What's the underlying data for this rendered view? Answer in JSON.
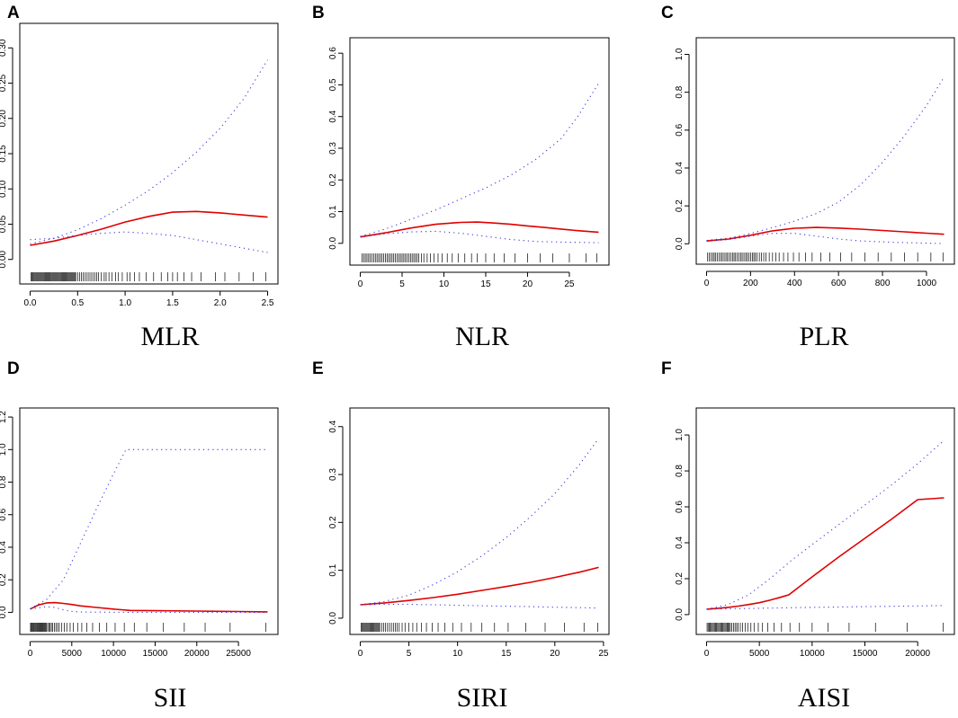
{
  "figure": {
    "background": "#ffffff"
  },
  "colors": {
    "fit": "#e00000",
    "ci": "#3838e0",
    "rug": "#000000"
  },
  "chart_data": [
    {
      "type": "line",
      "panel": "A",
      "title": "MLR",
      "xlabel": "MLR",
      "ylabel": "",
      "xlim": [
        0,
        2.5
      ],
      "ylim": [
        -0.02,
        0.32
      ],
      "xticks": [
        0.0,
        0.5,
        1.0,
        1.5,
        2.0,
        2.5
      ],
      "xtick_labels": [
        "0.0",
        "0.5",
        "1.0",
        "1.5",
        "2.0",
        "2.5"
      ],
      "yticks": [
        0.0,
        0.05,
        0.1,
        0.15,
        0.2,
        0.25,
        0.3
      ],
      "ytick_labels": [
        "0.00",
        "0.05",
        "0.10",
        "0.15",
        "0.20",
        "0.25",
        "0.30"
      ],
      "series": [
        {
          "name": "fit",
          "style": "solid",
          "color": "#e00000",
          "x": [
            0.0,
            0.25,
            0.5,
            0.75,
            1.0,
            1.25,
            1.5,
            1.75,
            2.0,
            2.25,
            2.5
          ],
          "y": [
            0.02,
            0.026,
            0.034,
            0.043,
            0.053,
            0.061,
            0.067,
            0.068,
            0.066,
            0.063,
            0.06
          ]
        },
        {
          "name": "upper 95% CI",
          "style": "dotted",
          "color": "#3838e0",
          "x": [
            0.0,
            0.25,
            0.5,
            0.75,
            1.0,
            1.25,
            1.5,
            1.75,
            2.0,
            2.25,
            2.5
          ],
          "y": [
            0.022,
            0.03,
            0.042,
            0.058,
            0.077,
            0.098,
            0.123,
            0.152,
            0.186,
            0.228,
            0.283
          ]
        },
        {
          "name": "lower 95% CI",
          "style": "dotted",
          "color": "#3838e0",
          "x": [
            0.0,
            0.25,
            0.5,
            0.75,
            1.0,
            1.25,
            1.5,
            1.75,
            2.0,
            2.25,
            2.5
          ],
          "y": [
            0.028,
            0.03,
            0.034,
            0.037,
            0.039,
            0.037,
            0.034,
            0.028,
            0.022,
            0.016,
            0.01
          ]
        }
      ],
      "rug": [
        0.01,
        0.02,
        0.03,
        0.04,
        0.05,
        0.06,
        0.07,
        0.08,
        0.09,
        0.1,
        0.11,
        0.12,
        0.13,
        0.14,
        0.15,
        0.16,
        0.17,
        0.18,
        0.19,
        0.2,
        0.21,
        0.22,
        0.23,
        0.24,
        0.25,
        0.26,
        0.27,
        0.28,
        0.29,
        0.3,
        0.31,
        0.32,
        0.33,
        0.34,
        0.35,
        0.36,
        0.37,
        0.38,
        0.39,
        0.4,
        0.41,
        0.42,
        0.43,
        0.44,
        0.45,
        0.46,
        0.47,
        0.48,
        0.5,
        0.52,
        0.54,
        0.56,
        0.58,
        0.6,
        0.62,
        0.64,
        0.66,
        0.68,
        0.7,
        0.72,
        0.75,
        0.78,
        0.8,
        0.83,
        0.86,
        0.9,
        0.93,
        0.97,
        1.02,
        1.05,
        1.1,
        1.15,
        1.22,
        1.3,
        1.38,
        1.45,
        1.5,
        1.55,
        1.62,
        1.7,
        1.8,
        1.95,
        2.05,
        2.2,
        2.35,
        2.48
      ]
    },
    {
      "type": "line",
      "panel": "B",
      "title": "NLR",
      "xlabel": "NLR",
      "ylabel": "",
      "xlim": [
        0,
        28.5
      ],
      "ylim": [
        -0.04,
        0.62
      ],
      "xticks": [
        0,
        5,
        10,
        15,
        20,
        25
      ],
      "xtick_labels": [
        "0",
        "5",
        "10",
        "15",
        "20",
        "25"
      ],
      "yticks": [
        0.0,
        0.1,
        0.2,
        0.3,
        0.4,
        0.5,
        0.6
      ],
      "ytick_labels": [
        "0.0",
        "0.1",
        "0.2",
        "0.3",
        "0.4",
        "0.5",
        "0.6"
      ],
      "series": [
        {
          "name": "fit",
          "style": "solid",
          "color": "#e00000",
          "x": [
            0,
            3,
            6,
            9,
            12,
            14,
            16,
            18,
            20,
            22,
            24,
            26,
            28.5
          ],
          "y": [
            0.02,
            0.033,
            0.048,
            0.06,
            0.066,
            0.067,
            0.064,
            0.06,
            0.055,
            0.05,
            0.045,
            0.04,
            0.035
          ]
        },
        {
          "name": "upper 95% CI",
          "style": "dotted",
          "color": "#3838e0",
          "x": [
            0,
            3,
            6,
            9,
            12,
            15,
            18,
            21,
            24,
            26,
            28.5
          ],
          "y": [
            0.022,
            0.045,
            0.075,
            0.105,
            0.14,
            0.175,
            0.215,
            0.265,
            0.33,
            0.4,
            0.505
          ]
        },
        {
          "name": "lower 95% CI",
          "style": "dotted",
          "color": "#3838e0",
          "x": [
            0,
            3,
            6,
            9,
            12,
            15,
            18,
            21,
            24,
            26,
            28.5
          ],
          "y": [
            0.02,
            0.03,
            0.036,
            0.038,
            0.032,
            0.022,
            0.012,
            0.006,
            0.004,
            0.003,
            0.002
          ]
        }
      ],
      "rug": [
        0.2,
        0.4,
        0.6,
        0.8,
        1,
        1.2,
        1.4,
        1.6,
        1.8,
        2,
        2.2,
        2.4,
        2.6,
        2.8,
        3,
        3.2,
        3.4,
        3.6,
        3.8,
        4,
        4.2,
        4.4,
        4.6,
        4.8,
        5,
        5.2,
        5.4,
        5.6,
        5.8,
        6,
        6.2,
        6.4,
        6.6,
        6.8,
        7,
        7.3,
        7.6,
        8,
        8.4,
        8.8,
        9.3,
        9.8,
        10.4,
        11,
        11.7,
        12.5,
        13.3,
        14,
        15,
        16,
        17.2,
        18.5,
        20,
        21.5,
        23,
        25,
        27,
        28.3
      ]
    },
    {
      "type": "line",
      "panel": "C",
      "title": "PLR",
      "xlabel": "PLR",
      "ylabel": "",
      "xlim": [
        0,
        1080
      ],
      "ylim": [
        -0.06,
        1.04
      ],
      "xticks": [
        0,
        200,
        400,
        600,
        800,
        1000
      ],
      "xtick_labels": [
        "0",
        "200",
        "400",
        "600",
        "800",
        "1000"
      ],
      "yticks": [
        0.0,
        0.2,
        0.4,
        0.6,
        0.8,
        1.0
      ],
      "ytick_labels": [
        "0.0",
        "0.2",
        "0.4",
        "0.6",
        "0.8",
        "1.0"
      ],
      "series": [
        {
          "name": "fit",
          "style": "solid",
          "color": "#e00000",
          "x": [
            0,
            100,
            200,
            300,
            400,
            500,
            600,
            700,
            800,
            900,
            1000,
            1080
          ],
          "y": [
            0.015,
            0.025,
            0.045,
            0.068,
            0.082,
            0.086,
            0.083,
            0.077,
            0.07,
            0.063,
            0.056,
            0.05
          ]
        },
        {
          "name": "upper 95% CI",
          "style": "dotted",
          "color": "#3838e0",
          "x": [
            0,
            100,
            200,
            300,
            400,
            500,
            600,
            700,
            800,
            900,
            1000,
            1080
          ],
          "y": [
            0.018,
            0.03,
            0.055,
            0.085,
            0.12,
            0.16,
            0.22,
            0.31,
            0.43,
            0.57,
            0.73,
            0.88
          ]
        },
        {
          "name": "lower 95% CI",
          "style": "dotted",
          "color": "#3838e0",
          "x": [
            0,
            100,
            200,
            300,
            400,
            500,
            600,
            700,
            800,
            900,
            1000,
            1080
          ],
          "y": [
            0.012,
            0.022,
            0.04,
            0.055,
            0.055,
            0.04,
            0.025,
            0.015,
            0.01,
            0.006,
            0.003,
            0.001
          ]
        }
      ],
      "rug": [
        5,
        12,
        20,
        28,
        35,
        42,
        50,
        58,
        65,
        72,
        80,
        88,
        95,
        102,
        110,
        118,
        125,
        132,
        140,
        148,
        155,
        162,
        170,
        178,
        185,
        192,
        200,
        208,
        215,
        222,
        230,
        240,
        250,
        260,
        270,
        285,
        300,
        315,
        330,
        350,
        370,
        395,
        420,
        450,
        480,
        520,
        560,
        610,
        660,
        720,
        780,
        840,
        900,
        960,
        1020,
        1075
      ]
    },
    {
      "type": "line",
      "panel": "D",
      "title": "SII",
      "xlabel": "SII",
      "ylabel": "",
      "xlim": [
        0,
        28500
      ],
      "ylim": [
        -0.08,
        1.2
      ],
      "xticks": [
        0,
        5000,
        10000,
        15000,
        20000,
        25000
      ],
      "xtick_labels": [
        "0",
        "5000",
        "10000",
        "15000",
        "20000",
        "25000"
      ],
      "yticks": [
        0.0,
        0.2,
        0.4,
        0.6,
        0.8,
        1.0,
        1.2
      ],
      "ytick_labels": [
        "0.0",
        "0.2",
        "0.4",
        "0.6",
        "0.8",
        "1.0",
        "1.2"
      ],
      "series": [
        {
          "name": "fit",
          "style": "solid",
          "color": "#e00000",
          "x": [
            0,
            1000,
            2000,
            3000,
            4000,
            5000,
            6000,
            8000,
            10000,
            12000,
            15000,
            20000,
            25000,
            28500
          ],
          "y": [
            0.02,
            0.045,
            0.058,
            0.06,
            0.055,
            0.048,
            0.04,
            0.03,
            0.02,
            0.012,
            0.01,
            0.008,
            0.005,
            0.003
          ]
        },
        {
          "name": "upper 95% CI",
          "style": "dotted",
          "color": "#3838e0",
          "x": [
            0,
            2000,
            4000,
            6000,
            8000,
            10000,
            11500,
            15000,
            20000,
            25000,
            28500
          ],
          "y": [
            0.022,
            0.08,
            0.2,
            0.42,
            0.64,
            0.85,
            1.0,
            1.0,
            1.0,
            1.0,
            1.0
          ]
        },
        {
          "name": "lower 95% CI",
          "style": "dotted",
          "color": "#3838e0",
          "x": [
            0,
            2000,
            3000,
            4000,
            5000,
            6000,
            8000,
            11500,
            15000,
            20000,
            25000,
            28500
          ],
          "y": [
            0.02,
            0.035,
            0.03,
            0.015,
            0.006,
            0.002,
            0.001,
            0.0,
            0.0,
            0.0,
            0.0,
            0.0
          ]
        }
      ],
      "rug": [
        50,
        150,
        250,
        350,
        450,
        550,
        650,
        750,
        850,
        950,
        1050,
        1150,
        1250,
        1350,
        1450,
        1550,
        1650,
        1750,
        1850,
        1950,
        2100,
        2250,
        2400,
        2550,
        2700,
        2900,
        3100,
        3300,
        3500,
        3800,
        4100,
        4400,
        4800,
        5200,
        5700,
        6200,
        6800,
        7500,
        8300,
        9200,
        10200,
        11300,
        12500,
        14000,
        16000,
        18500,
        21000,
        24000,
        28300
      ]
    },
    {
      "type": "line",
      "panel": "E",
      "title": "SIRI",
      "xlabel": "SIRI",
      "ylabel": "",
      "xlim": [
        0,
        24.5
      ],
      "ylim": [
        -0.015,
        0.42
      ],
      "xticks": [
        0,
        5,
        10,
        15,
        20,
        25
      ],
      "xtick_labels": [
        "0",
        "5",
        "10",
        "15",
        "20",
        "25"
      ],
      "yticks": [
        0.0,
        0.1,
        0.2,
        0.3,
        0.4
      ],
      "ytick_labels": [
        "0.0",
        "0.1",
        "0.2",
        "0.3",
        "0.4"
      ],
      "series": [
        {
          "name": "fit",
          "style": "solid",
          "color": "#e00000",
          "x": [
            0,
            2.5,
            5,
            7.5,
            10,
            12.5,
            15,
            17.5,
            20,
            22.5,
            24.5
          ],
          "y": [
            0.028,
            0.032,
            0.037,
            0.043,
            0.05,
            0.058,
            0.066,
            0.075,
            0.085,
            0.096,
            0.106
          ]
        },
        {
          "name": "upper 95% CI",
          "style": "dotted",
          "color": "#3838e0",
          "x": [
            0,
            2.5,
            5,
            7.5,
            10,
            12.5,
            15,
            17.5,
            20,
            22.5,
            24.5
          ],
          "y": [
            0.028,
            0.035,
            0.048,
            0.07,
            0.097,
            0.13,
            0.168,
            0.212,
            0.26,
            0.32,
            0.375
          ]
        },
        {
          "name": "lower 95% CI",
          "style": "dotted",
          "color": "#3838e0",
          "x": [
            0,
            2.5,
            5,
            7.5,
            10,
            12.5,
            15,
            17.5,
            20,
            22.5,
            24.5
          ],
          "y": [
            0.028,
            0.029,
            0.029,
            0.028,
            0.027,
            0.026,
            0.025,
            0.024,
            0.023,
            0.022,
            0.021
          ]
        }
      ],
      "rug": [
        0.1,
        0.2,
        0.3,
        0.4,
        0.5,
        0.6,
        0.7,
        0.8,
        0.9,
        1,
        1.1,
        1.2,
        1.3,
        1.4,
        1.5,
        1.6,
        1.7,
        1.8,
        1.9,
        2,
        2.2,
        2.4,
        2.6,
        2.8,
        3,
        3.2,
        3.4,
        3.6,
        3.8,
        4,
        4.3,
        4.6,
        5,
        5.4,
        5.8,
        6.3,
        6.8,
        7.4,
        8,
        8.7,
        9.5,
        10.4,
        11.4,
        12.5,
        13.8,
        15.2,
        17,
        19,
        21,
        23,
        24.4
      ]
    },
    {
      "type": "line",
      "panel": "F",
      "title": "AISI",
      "xlabel": "AISI",
      "ylabel": "",
      "xlim": [
        0,
        22500
      ],
      "ylim": [
        -0.06,
        1.1
      ],
      "xticks": [
        0,
        5000,
        10000,
        15000,
        20000
      ],
      "xtick_labels": [
        "0",
        "5000",
        "10000",
        "15000",
        "20000"
      ],
      "yticks": [
        0.0,
        0.2,
        0.4,
        0.6,
        0.8,
        1.0
      ],
      "ytick_labels": [
        "0.0",
        "0.2",
        "0.4",
        "0.6",
        "0.8",
        "1.0"
      ],
      "series": [
        {
          "name": "fit",
          "style": "solid",
          "color": "#e00000",
          "x": [
            0,
            1000,
            2000,
            3000,
            4000,
            5000,
            6000,
            7000,
            7800,
            10000,
            12500,
            15000,
            17500,
            20000,
            22500
          ],
          "y": [
            0.03,
            0.034,
            0.04,
            0.047,
            0.056,
            0.066,
            0.08,
            0.096,
            0.11,
            0.21,
            0.32,
            0.425,
            0.53,
            0.64,
            0.65
          ]
        },
        {
          "name": "upper 95% CI",
          "style": "dotted",
          "color": "#3838e0",
          "x": [
            0,
            2000,
            4000,
            6000,
            8000,
            10000,
            12500,
            15000,
            17500,
            20000,
            22500
          ],
          "y": [
            0.03,
            0.055,
            0.11,
            0.2,
            0.3,
            0.39,
            0.5,
            0.61,
            0.72,
            0.84,
            0.97
          ]
        },
        {
          "name": "lower 95% CI",
          "style": "dotted",
          "color": "#3838e0",
          "x": [
            0,
            2000,
            4000,
            6000,
            8000,
            10000,
            12500,
            15000,
            17500,
            20000,
            22500
          ],
          "y": [
            0.03,
            0.032,
            0.034,
            0.036,
            0.038,
            0.04,
            0.042,
            0.044,
            0.046,
            0.048,
            0.05
          ]
        }
      ],
      "rug": [
        50,
        150,
        250,
        350,
        450,
        550,
        650,
        750,
        850,
        950,
        1050,
        1150,
        1250,
        1350,
        1450,
        1550,
        1650,
        1750,
        1850,
        1950,
        2050,
        2150,
        2250,
        2400,
        2550,
        2700,
        2850,
        3000,
        3200,
        3400,
        3650,
        3900,
        4200,
        4500,
        4900,
        5300,
        5800,
        6400,
        7100,
        7900,
        8800,
        10000,
        11500,
        13500,
        16000,
        19000,
        22400
      ]
    }
  ]
}
